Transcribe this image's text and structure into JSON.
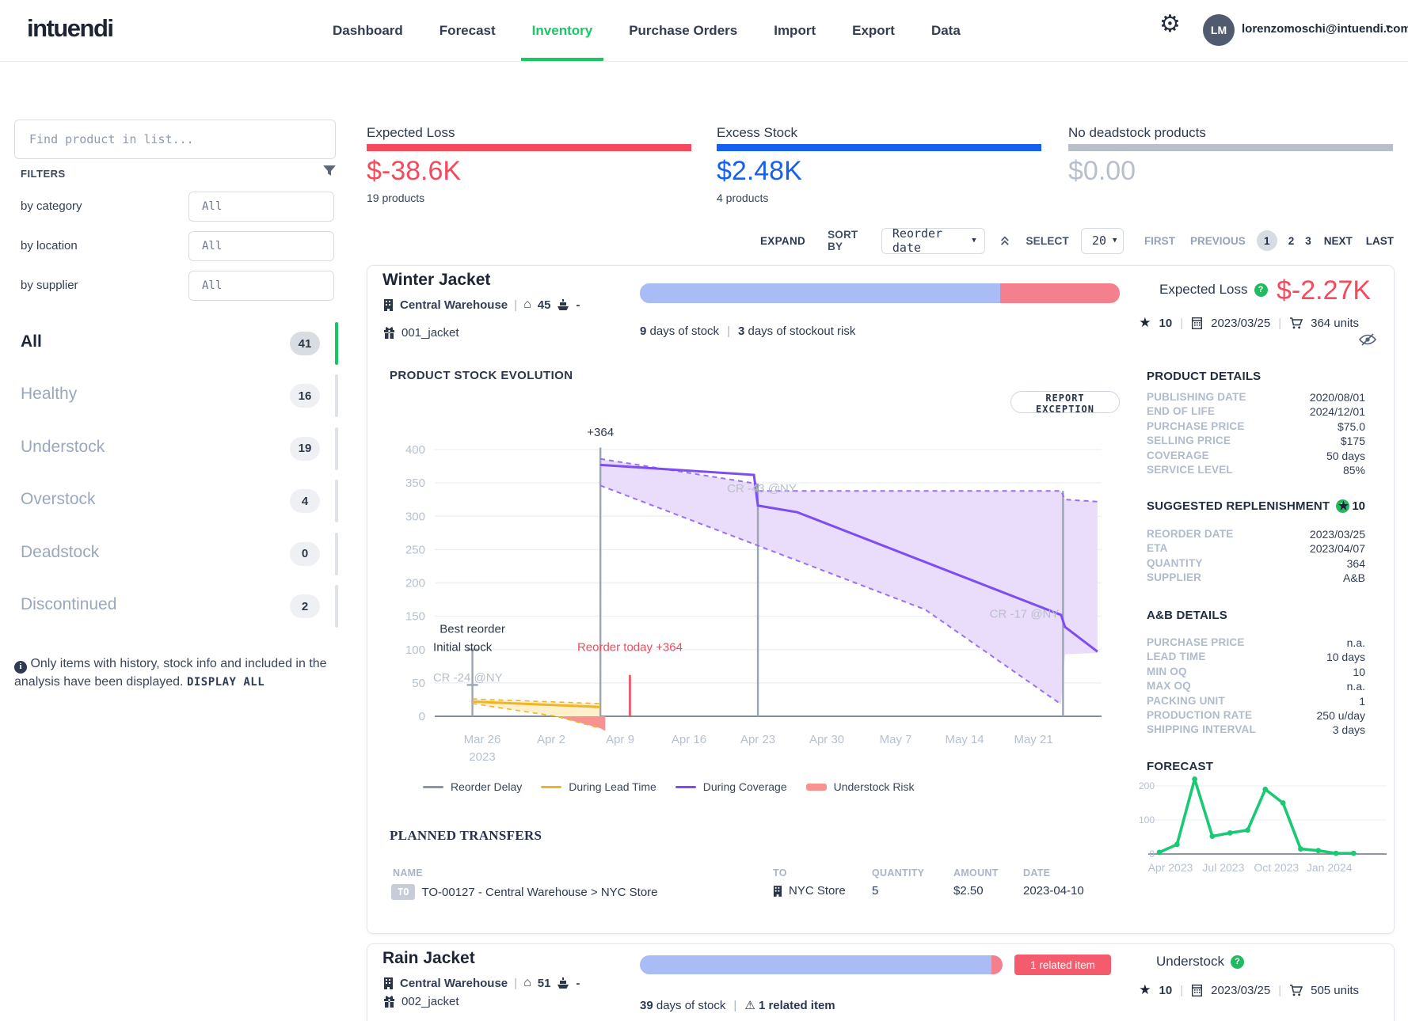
{
  "navbar": {
    "logo": "intuendi",
    "items": [
      {
        "label": "Dashboard",
        "active": false
      },
      {
        "label": "Forecast",
        "active": false
      },
      {
        "label": "Inventory",
        "active": true
      },
      {
        "label": "Purchase Orders",
        "active": false
      },
      {
        "label": "Import",
        "active": false
      },
      {
        "label": "Export",
        "active": false
      },
      {
        "label": "Data",
        "active": false
      }
    ],
    "accent_color": "#17c964",
    "user_email": "lorenzomoschi@intuendi.com",
    "avatar_initials": "LM"
  },
  "sidebar": {
    "search_placeholder": "Find product in list...",
    "filters_label": "FILTERS",
    "filters": [
      {
        "label": "by category",
        "value": "All"
      },
      {
        "label": "by location",
        "value": "All"
      },
      {
        "label": "by supplier",
        "value": "All"
      }
    ],
    "categories": [
      {
        "label": "All",
        "count": "41",
        "active": true
      },
      {
        "label": "Healthy",
        "count": "16",
        "active": false
      },
      {
        "label": "Understock",
        "count": "19",
        "active": false
      },
      {
        "label": "Overstock",
        "count": "4",
        "active": false
      },
      {
        "label": "Deadstock",
        "count": "0",
        "active": false
      },
      {
        "label": "Discontinued",
        "count": "2",
        "active": false
      }
    ],
    "note": "Only items with history, stock info and included in the analysis have been displayed.",
    "display_all_label": "DISPLAY ALL"
  },
  "stats": [
    {
      "title": "Expected Loss",
      "value": "$-38.6K",
      "sub": "19 products",
      "color": "#f5495c"
    },
    {
      "title": "Excess Stock",
      "value": "$2.48K",
      "sub": "4 products",
      "color": "#155ff2"
    },
    {
      "title": "No deadstock products",
      "value": "$0.00",
      "sub": "",
      "color": "#b8bfca"
    }
  ],
  "controls": {
    "expand_label": "EXPAND",
    "sort_by_label": "SORT BY",
    "sort_value": "Reorder date",
    "select_label": "SELECT",
    "select_value": "20",
    "first_label": "FIRST",
    "previous_label": "PREVIOUS",
    "pages": [
      "1",
      "2",
      "3"
    ],
    "current_page": "1",
    "next_label": "NEXT",
    "last_label": "LAST"
  },
  "product1": {
    "name": "Winter Jacket",
    "location": "Central Warehouse",
    "home_count": "45",
    "supplier_dash": "-",
    "sku": "001_jacket",
    "stock_days_number": "9",
    "stock_days_text": "days of stock",
    "risk_days_number": "3",
    "risk_days_text": "days of stockout risk",
    "bar": {
      "blue_pct": 75,
      "red_pct": 25
    },
    "loss_label": "Expected Loss",
    "loss_value": "$-2.27K",
    "star_value": "10",
    "reorder_date": "2023/03/25",
    "units": "364 units",
    "report_button": "REPORT EXCEPTION",
    "details_title": "PRODUCT DETAILS",
    "details": [
      [
        "PUBLISHING DATE",
        "2020/08/01"
      ],
      [
        "END OF LIFE",
        "2024/12/01"
      ],
      [
        "PURCHASE PRICE",
        "$75.0"
      ],
      [
        "SELLING PRICE",
        "$175"
      ],
      [
        "COVERAGE",
        "50 days"
      ],
      [
        "SERVICE LEVEL",
        "85%"
      ]
    ],
    "replenishment_title": "SUGGESTED REPLENISHMENT",
    "replenishment_star": "10",
    "replenishment": [
      [
        "REORDER DATE",
        "2023/03/25"
      ],
      [
        "ETA",
        "2023/04/07"
      ],
      [
        "QUANTITY",
        "364"
      ],
      [
        "SUPPLIER",
        "A&B"
      ]
    ],
    "ab_title": "A&B DETAILS",
    "ab_details": [
      [
        "PURCHASE PRICE",
        "n.a."
      ],
      [
        "LEAD TIME",
        "10 days"
      ],
      [
        "MIN OQ",
        "10"
      ],
      [
        "MAX OQ",
        "n.a."
      ],
      [
        "PACKING UNIT",
        "1"
      ],
      [
        "PRODUCTION RATE",
        "250 u/day"
      ],
      [
        "SHIPPING INTERVAL",
        "3 days"
      ]
    ],
    "forecast_title": "FORECAST",
    "transfers_title": "PLANNED TRANSFERS",
    "transfers_headers": [
      "NAME",
      "TO",
      "QUANTITY",
      "AMOUNT",
      "DATE"
    ],
    "transfer_row": {
      "badge": "TO",
      "name": "TO-00127 - Central Warehouse > NYC Store",
      "to": "NYC Store",
      "quantity": "5",
      "amount": "$2.50",
      "date": "2023-04-10"
    }
  },
  "chart_data": {
    "type": "line",
    "title": "PRODUCT STOCK EVOLUTION",
    "ylim": [
      0,
      400
    ],
    "grid": true,
    "y_ticks": [
      0,
      50,
      100,
      150,
      200,
      250,
      300,
      350,
      400
    ],
    "x_ticks": [
      {
        "label": "Mar 26",
        "sub": "2023",
        "day": 0
      },
      {
        "label": "Apr 2",
        "day": 7
      },
      {
        "label": "Apr 9",
        "day": 14
      },
      {
        "label": "Apr 16",
        "day": 21
      },
      {
        "label": "Apr 23",
        "day": 28
      },
      {
        "label": "Apr 30",
        "day": 35
      },
      {
        "label": "May 7",
        "day": 42
      },
      {
        "label": "May 14",
        "day": 49
      },
      {
        "label": "May 21",
        "day": 56
      }
    ],
    "fills": [
      {
        "name": "coverage-band",
        "color": "#e9ddfb",
        "points": [
          [
            12,
            386
          ],
          [
            27.8,
            349
          ],
          [
            28,
            338
          ],
          [
            58.8,
            338
          ],
          [
            59.2,
            325
          ],
          [
            62.5,
            322
          ],
          [
            62.5,
            95
          ],
          [
            59.2,
            93
          ],
          [
            58.8,
            18
          ],
          [
            45,
            160
          ],
          [
            28,
            256
          ],
          [
            12,
            346
          ]
        ]
      },
      {
        "name": "lead-time-band",
        "color": "#fdf0cb",
        "points": [
          [
            -1,
            26
          ],
          [
            12,
            19
          ],
          [
            12,
            -18
          ],
          [
            7.5,
            0
          ],
          [
            -1,
            19
          ]
        ]
      },
      {
        "name": "understock-risk",
        "color": "#f6928f",
        "points": [
          [
            7.5,
            0
          ],
          [
            12,
            -18
          ],
          [
            12.5,
            -22
          ],
          [
            12.5,
            0
          ]
        ]
      }
    ],
    "gray_lines": [
      {
        "day": -1,
        "from": 0,
        "to": 100,
        "serifs": [
          100,
          47
        ]
      },
      {
        "day": 12,
        "from": 0,
        "to": 403,
        "serifs": []
      },
      {
        "day": 28,
        "from": 0,
        "to": 349,
        "serifs": []
      },
      {
        "day": 59,
        "from": 0,
        "to": 338,
        "serifs": []
      }
    ],
    "red_line": {
      "day": 15,
      "from": 0,
      "to": 62
    },
    "series": [
      {
        "name": "During Lead Time (upper bound)",
        "color": "#f0b429",
        "style": "dashed",
        "width": 1.6,
        "points": [
          [
            -1,
            26
          ],
          [
            12,
            19
          ]
        ]
      },
      {
        "name": "During Lead Time (lower bound)",
        "color": "#f0b429",
        "style": "dashed",
        "width": 1.6,
        "points": [
          [
            -1,
            19
          ],
          [
            7.5,
            0
          ],
          [
            12,
            -18
          ]
        ]
      },
      {
        "name": "During Lead Time",
        "color": "#f0b429",
        "style": "solid",
        "width": 3,
        "points": [
          [
            -1,
            22
          ],
          [
            12,
            14
          ]
        ]
      },
      {
        "name": "During Coverage (upper bound)",
        "color": "#9a6ff5",
        "style": "dashed",
        "width": 2,
        "points": [
          [
            12,
            386
          ],
          [
            27.8,
            349
          ],
          [
            28,
            338
          ],
          [
            58.8,
            338
          ],
          [
            59.2,
            325
          ],
          [
            62.5,
            322
          ]
        ]
      },
      {
        "name": "During Coverage (lower bound)",
        "color": "#9a6ff5",
        "style": "dashed",
        "width": 2,
        "points": [
          [
            12,
            346
          ],
          [
            28,
            256
          ],
          [
            45,
            160
          ],
          [
            58.8,
            18
          ]
        ]
      },
      {
        "name": "During Coverage",
        "color": "#7d4df3",
        "style": "solid",
        "width": 3,
        "points": [
          [
            12,
            377
          ],
          [
            27.6,
            362
          ],
          [
            28,
            316
          ],
          [
            32,
            306
          ],
          [
            58.8,
            152
          ],
          [
            59.2,
            134
          ],
          [
            62.5,
            97
          ]
        ]
      }
    ],
    "annotations": [
      {
        "text": "+364",
        "day": 12,
        "value": 420,
        "color": "#2c3748",
        "anchor": "middle"
      },
      {
        "text": "CR -43 @NY",
        "day": 28.4,
        "value": 336,
        "color": "#b8bfca",
        "anchor": "middle"
      },
      {
        "text": "CR -24 @NY",
        "day": -5,
        "value": 52,
        "color": "#b8bfca",
        "anchor": "start"
      },
      {
        "text": "CR -17 @NY",
        "day": 58.6,
        "value": 148,
        "color": "#b8bfca",
        "anchor": "end"
      },
      {
        "text": "Best reorder",
        "day": -1,
        "value": 125,
        "color": "#2c3748",
        "anchor": "middle"
      },
      {
        "text": "Initial stock",
        "day": -2,
        "value": 98,
        "color": "#2c3748",
        "anchor": "middle"
      },
      {
        "text": "Reorder today +364",
        "day": 15,
        "value": 98,
        "color": "#f5495c",
        "anchor": "middle"
      }
    ],
    "legend": [
      {
        "label": "Reorder Delay",
        "color": "#8a94a6",
        "thick": false
      },
      {
        "label": "During Lead Time",
        "color": "#f0b429",
        "thick": false
      },
      {
        "label": "During Coverage",
        "color": "#7d4df3",
        "thick": false
      },
      {
        "label": "Understock Risk",
        "color": "#f6928f",
        "thick": true
      }
    ]
  },
  "forecast_chart": {
    "type": "line",
    "color": "#19c973",
    "y_ticks": [
      0,
      100,
      200
    ],
    "x_ticks": [
      {
        "label": "Apr 2023",
        "m": 0
      },
      {
        "label": "Jul 2023",
        "m": 3
      },
      {
        "label": "Oct 2023",
        "m": 6
      },
      {
        "label": "Jan 2024",
        "m": 9
      }
    ],
    "values": [
      5,
      28,
      220,
      52,
      62,
      70,
      190,
      150,
      15,
      10,
      2,
      2
    ]
  },
  "product2": {
    "name": "Rain Jacket",
    "location": "Central Warehouse",
    "home_count": "51",
    "supplier_dash": "-",
    "sku": "002_jacket",
    "stock_days_number": "39",
    "stock_days_text": "days of stock",
    "related_warning": "1 related item",
    "related_badge": "1 related item",
    "status_label": "Understock",
    "star_value": "10",
    "reorder_date": "2023/03/25",
    "units": "505 units",
    "bar": {
      "blue_pct": 97,
      "red_pct": 3
    }
  }
}
